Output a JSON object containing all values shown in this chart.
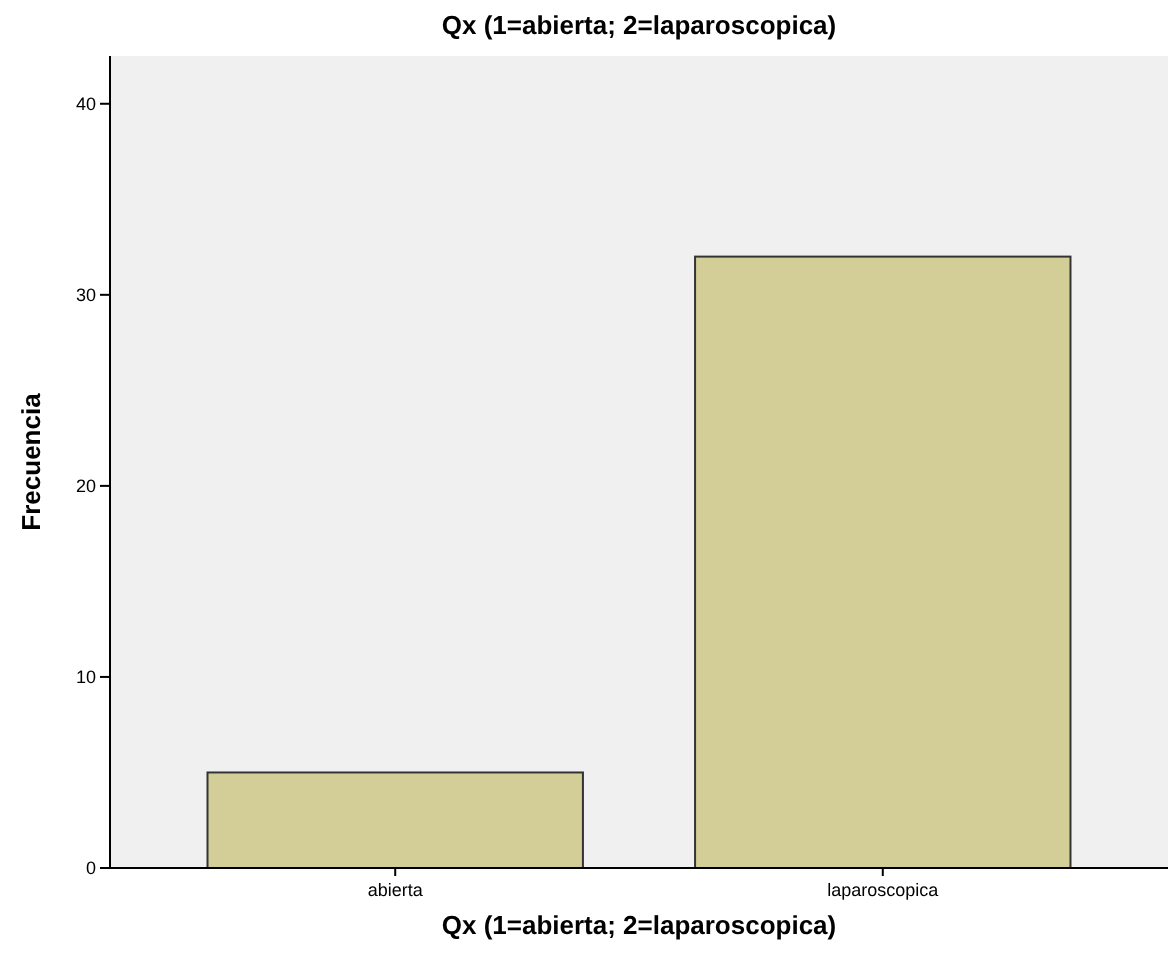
{
  "chart_data": {
    "type": "bar",
    "title": "Qx (1=abierta; 2=laparoscopica)",
    "xlabel": "Qx (1=abierta; 2=laparoscopica)",
    "ylabel": "Frecuencia",
    "categories": [
      "abierta",
      "laparoscopica"
    ],
    "values": [
      5,
      32
    ],
    "color": "#d3ce97",
    "ylim": [
      0,
      42.5
    ],
    "yticks": [
      0,
      10,
      20,
      30,
      40
    ],
    "grid": false
  }
}
